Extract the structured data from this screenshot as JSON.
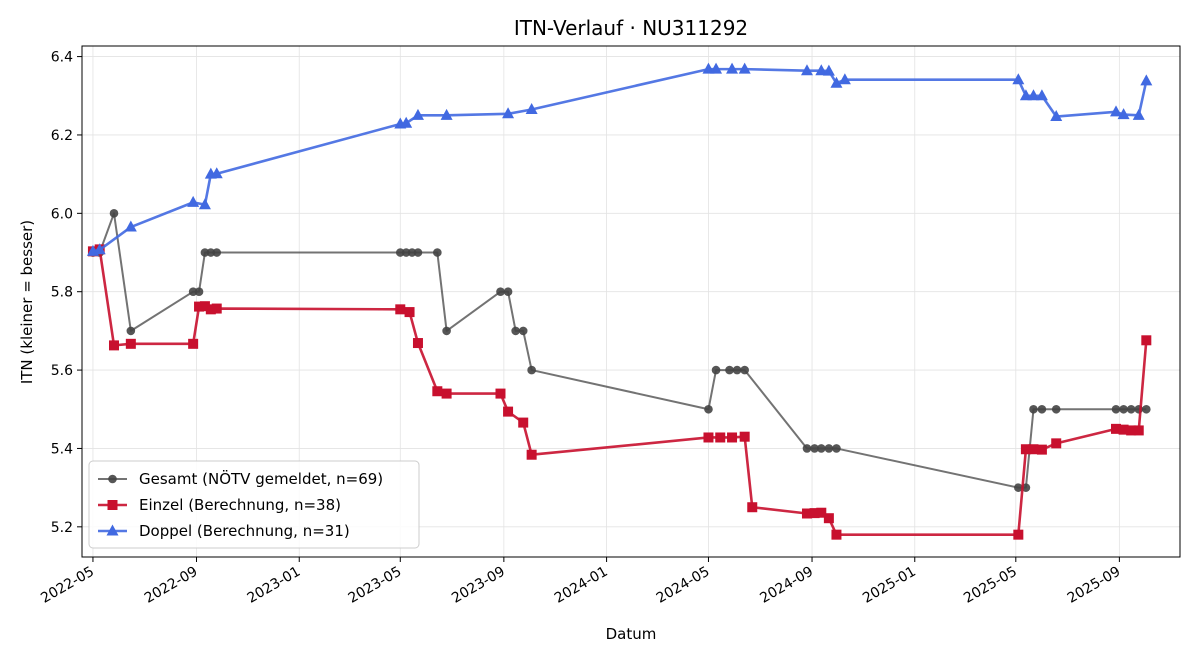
{
  "chart_data": {
    "type": "line",
    "title": "ITN-Verlauf · NU311292",
    "xlabel": "Datum",
    "ylabel": "ITN  (kleiner = besser)",
    "xlim": [
      "2022-04-18",
      "2025-11-12"
    ],
    "ylim": [
      5.123,
      6.427
    ],
    "grid": true,
    "legend_position": "lower-left",
    "x_ticks": [
      {
        "date": "2022-05-01",
        "label": "2022-05"
      },
      {
        "date": "2022-09-01",
        "label": "2022-09"
      },
      {
        "date": "2023-01-01",
        "label": "2023-01"
      },
      {
        "date": "2023-05-01",
        "label": "2023-05"
      },
      {
        "date": "2023-09-01",
        "label": "2023-09"
      },
      {
        "date": "2024-01-01",
        "label": "2024-01"
      },
      {
        "date": "2024-05-01",
        "label": "2024-05"
      },
      {
        "date": "2024-09-01",
        "label": "2024-09"
      },
      {
        "date": "2025-01-01",
        "label": "2025-01"
      },
      {
        "date": "2025-05-01",
        "label": "2025-05"
      },
      {
        "date": "2025-09-01",
        "label": "2025-09"
      }
    ],
    "y_ticks": [
      {
        "value": 5.2,
        "label": "5.2"
      },
      {
        "value": 5.4,
        "label": "5.4"
      },
      {
        "value": 5.6,
        "label": "5.6"
      },
      {
        "value": 5.8,
        "label": "5.8"
      },
      {
        "value": 6.0,
        "label": "6.0"
      },
      {
        "value": 6.2,
        "label": "6.2"
      },
      {
        "value": 6.4,
        "label": "6.4"
      }
    ],
    "series": [
      {
        "name": "Gesamt (NÖTV gemeldet, n=69)",
        "color": "#444444",
        "marker": "circle",
        "points": [
          [
            "2022-05-01",
            5.9
          ],
          [
            "2022-05-09",
            5.9
          ],
          [
            "2022-05-26",
            6.0
          ],
          [
            "2022-06-15",
            5.7
          ],
          [
            "2022-08-28",
            5.8
          ],
          [
            "2022-09-04",
            5.8
          ],
          [
            "2022-09-11",
            5.9
          ],
          [
            "2022-09-18",
            5.9
          ],
          [
            "2022-09-25",
            5.9
          ],
          [
            "2023-05-01",
            5.9
          ],
          [
            "2023-05-08",
            5.9
          ],
          [
            "2023-05-15",
            5.9
          ],
          [
            "2023-05-22",
            5.9
          ],
          [
            "2023-06-14",
            5.9
          ],
          [
            "2023-06-25",
            5.7
          ],
          [
            "2023-08-28",
            5.8
          ],
          [
            "2023-09-06",
            5.8
          ],
          [
            "2023-09-15",
            5.7
          ],
          [
            "2023-09-24",
            5.7
          ],
          [
            "2023-10-04",
            5.6
          ],
          [
            "2024-05-01",
            5.5
          ],
          [
            "2024-05-10",
            5.6
          ],
          [
            "2024-05-26",
            5.6
          ],
          [
            "2024-06-04",
            5.6
          ],
          [
            "2024-06-13",
            5.6
          ],
          [
            "2024-08-26",
            5.4
          ],
          [
            "2024-09-04",
            5.4
          ],
          [
            "2024-09-12",
            5.4
          ],
          [
            "2024-09-21",
            5.4
          ],
          [
            "2024-09-30",
            5.4
          ],
          [
            "2025-05-04",
            5.3
          ],
          [
            "2025-05-13",
            5.3
          ],
          [
            "2025-05-22",
            5.5
          ],
          [
            "2025-06-01",
            5.5
          ],
          [
            "2025-06-18",
            5.5
          ],
          [
            "2025-08-28",
            5.5
          ],
          [
            "2025-09-06",
            5.5
          ],
          [
            "2025-09-15",
            5.5
          ],
          [
            "2025-09-24",
            5.5
          ],
          [
            "2025-10-03",
            5.5
          ]
        ]
      },
      {
        "name": "Einzel (Berechnung, n=38)",
        "color": "#c8102e",
        "marker": "square",
        "points": [
          [
            "2022-05-01",
            5.903
          ],
          [
            "2022-05-09",
            5.908
          ],
          [
            "2022-05-26",
            5.663
          ],
          [
            "2022-06-15",
            5.667
          ],
          [
            "2022-08-28",
            5.667
          ],
          [
            "2022-09-04",
            5.762
          ],
          [
            "2022-09-11",
            5.763
          ],
          [
            "2022-09-18",
            5.755
          ],
          [
            "2022-09-25",
            5.757
          ],
          [
            "2023-05-01",
            5.755
          ],
          [
            "2023-05-12",
            5.748
          ],
          [
            "2023-05-22",
            5.669
          ],
          [
            "2023-06-14",
            5.546
          ],
          [
            "2023-06-25",
            5.54
          ],
          [
            "2023-08-28",
            5.54
          ],
          [
            "2023-09-06",
            5.494
          ],
          [
            "2023-09-24",
            5.466
          ],
          [
            "2023-10-04",
            5.384
          ],
          [
            "2024-05-01",
            5.428
          ],
          [
            "2024-05-15",
            5.428
          ],
          [
            "2024-05-29",
            5.428
          ],
          [
            "2024-06-13",
            5.43
          ],
          [
            "2024-06-22",
            5.25
          ],
          [
            "2024-08-26",
            5.234
          ],
          [
            "2024-09-04",
            5.235
          ],
          [
            "2024-09-12",
            5.236
          ],
          [
            "2024-09-21",
            5.222
          ],
          [
            "2024-09-30",
            5.18
          ],
          [
            "2025-05-04",
            5.18
          ],
          [
            "2025-05-13",
            5.398
          ],
          [
            "2025-05-22",
            5.398
          ],
          [
            "2025-06-01",
            5.397
          ],
          [
            "2025-06-18",
            5.413
          ],
          [
            "2025-08-28",
            5.45
          ],
          [
            "2025-09-06",
            5.448
          ],
          [
            "2025-09-15",
            5.446
          ],
          [
            "2025-09-24",
            5.446
          ],
          [
            "2025-10-03",
            5.676
          ]
        ]
      },
      {
        "name": "Doppel (Berechnung, n=31)",
        "color": "#4169e1",
        "marker": "triangle",
        "points": [
          [
            "2022-05-01",
            5.903
          ],
          [
            "2022-05-09",
            5.907
          ],
          [
            "2022-06-15",
            5.965
          ],
          [
            "2022-08-28",
            6.028
          ],
          [
            "2022-09-11",
            6.022
          ],
          [
            "2022-09-18",
            6.1
          ],
          [
            "2022-09-25",
            6.101
          ],
          [
            "2023-05-01",
            6.228
          ],
          [
            "2023-05-08",
            6.23
          ],
          [
            "2023-05-22",
            6.25
          ],
          [
            "2023-06-25",
            6.25
          ],
          [
            "2023-09-06",
            6.254
          ],
          [
            "2023-10-04",
            6.265
          ],
          [
            "2024-05-01",
            6.368
          ],
          [
            "2024-05-10",
            6.368
          ],
          [
            "2024-05-29",
            6.368
          ],
          [
            "2024-06-13",
            6.368
          ],
          [
            "2024-08-26",
            6.364
          ],
          [
            "2024-09-12",
            6.364
          ],
          [
            "2024-09-21",
            6.363
          ],
          [
            "2024-09-30",
            6.332
          ],
          [
            "2024-10-10",
            6.341
          ],
          [
            "2025-05-04",
            6.341
          ],
          [
            "2025-05-13",
            6.3
          ],
          [
            "2025-05-22",
            6.3
          ],
          [
            "2025-06-01",
            6.3
          ],
          [
            "2025-06-18",
            6.247
          ],
          [
            "2025-08-28",
            6.259
          ],
          [
            "2025-09-06",
            6.252
          ],
          [
            "2025-09-24",
            6.25
          ],
          [
            "2025-10-03",
            6.338
          ]
        ]
      }
    ]
  }
}
